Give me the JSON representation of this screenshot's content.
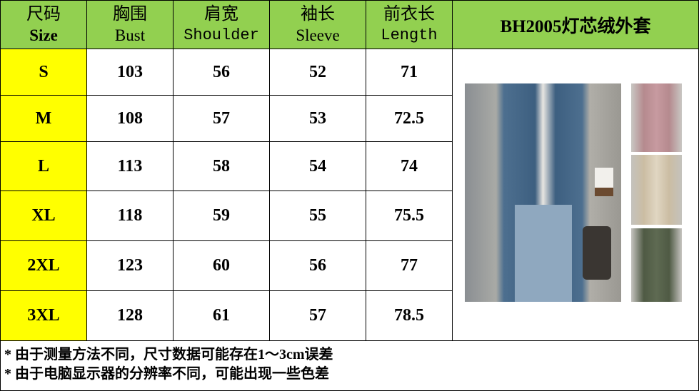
{
  "header": {
    "columns": [
      {
        "zh": "尺码",
        "en": "Size"
      },
      {
        "zh": "胸围",
        "en": "Bust"
      },
      {
        "zh": "肩宽",
        "en": "Shoulder"
      },
      {
        "zh": "袖长",
        "en": "Sleeve"
      },
      {
        "zh": "前衣长",
        "en": "Length"
      }
    ],
    "product_title": "BH2005灯芯绒外套"
  },
  "rows": [
    {
      "size": "S",
      "bust": "103",
      "shoulder": "56",
      "sleeve": "52",
      "length": "71"
    },
    {
      "size": "M",
      "bust": "108",
      "shoulder": "57",
      "sleeve": "53",
      "length": "72.5"
    },
    {
      "size": "L",
      "bust": "113",
      "shoulder": "58",
      "sleeve": "54",
      "length": "74"
    },
    {
      "size": "XL",
      "bust": "118",
      "shoulder": "59",
      "sleeve": "55",
      "length": "75.5"
    },
    {
      "size": "2XL",
      "bust": "123",
      "shoulder": "60",
      "sleeve": "56",
      "length": "77"
    },
    {
      "size": "3XL",
      "bust": "128",
      "shoulder": "61",
      "sleeve": "57",
      "length": "78.5"
    }
  ],
  "notes": [
    "* 由于测量方法不同，尺寸数据可能存在1～3cm误差",
    "* 由于电脑显示器的分辨率不同，可能出现一些色差"
  ],
  "colors": {
    "header_bg": "#92d050",
    "size_bg": "#ffff00"
  }
}
